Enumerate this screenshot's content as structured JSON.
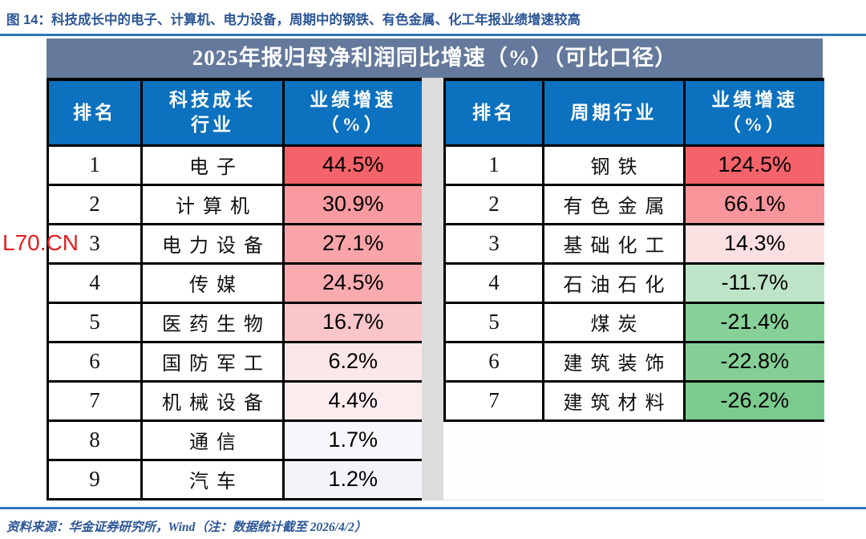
{
  "figure": {
    "caption_prefix": "图 14：",
    "caption_text": "科技成长中的电子、计算机、电力设备，周期中的钢铁、有色金属、化工年报业绩增速较高",
    "source_note": "资料来源：华金证券研究所，Wind（注：数据统计截至 2026/4/2）"
  },
  "watermark": "L70.CN",
  "table": {
    "title": "2025年报归母净利润同比增速（%）（可比口径）",
    "left": {
      "headers": [
        "排名",
        "科技成长\n行业",
        "业绩增速\n（%）"
      ],
      "rows": [
        {
          "rank": "1",
          "industry": "电子",
          "growth": "44.5%",
          "bg": "#f5636a"
        },
        {
          "rank": "2",
          "industry": "计算机",
          "growth": "30.9%",
          "bg": "#f89a9f"
        },
        {
          "rank": "3",
          "industry": "电力设备",
          "growth": "27.1%",
          "bg": "#f9a4a9"
        },
        {
          "rank": "4",
          "industry": "传媒",
          "growth": "24.5%",
          "bg": "#f9abaf"
        },
        {
          "rank": "5",
          "industry": "医药生物",
          "growth": "16.7%",
          "bg": "#fac6ca"
        },
        {
          "rank": "6",
          "industry": "国防军工",
          "growth": "6.2%",
          "bg": "#fce7e8"
        },
        {
          "rank": "7",
          "industry": "机械设备",
          "growth": "4.4%",
          "bg": "#fcecee"
        },
        {
          "rank": "8",
          "industry": "通信",
          "growth": "1.7%",
          "bg": "#f8f6fb"
        },
        {
          "rank": "9",
          "industry": "汽车",
          "growth": "1.2%",
          "bg": "#f5f3f9"
        }
      ]
    },
    "right": {
      "headers": [
        "排名",
        "周期行业",
        "业绩增速\n（%）"
      ],
      "rows": [
        {
          "rank": "1",
          "industry": "钢铁",
          "growth": "124.5%",
          "bg": "#f5636a"
        },
        {
          "rank": "2",
          "industry": "有色金属",
          "growth": "66.1%",
          "bg": "#f8959b"
        },
        {
          "rank": "3",
          "industry": "基础化工",
          "growth": "14.3%",
          "bg": "#fbe0e2"
        },
        {
          "rank": "4",
          "industry": "石油石化",
          "growth": "-11.7%",
          "bg": "#bee4c7"
        },
        {
          "rank": "5",
          "industry": "煤炭",
          "growth": "-21.4%",
          "bg": "#87d098"
        },
        {
          "rank": "6",
          "industry": "建筑装饰",
          "growth": "-22.8%",
          "bg": "#85cf97"
        },
        {
          "rank": "7",
          "industry": "建筑材料",
          "growth": "-26.2%",
          "bg": "#7bcb8e"
        }
      ]
    }
  },
  "colors": {
    "header_bg": "#0c71be",
    "band_bg": "#64799b",
    "rule_blue": "#2e75b6",
    "caption_blue": "#2c5696",
    "divider_gray": "#dcdcdc",
    "watermark_red": "#e41e1e",
    "max_red": "#f5636a",
    "min_green": "#7bcb8e"
  }
}
